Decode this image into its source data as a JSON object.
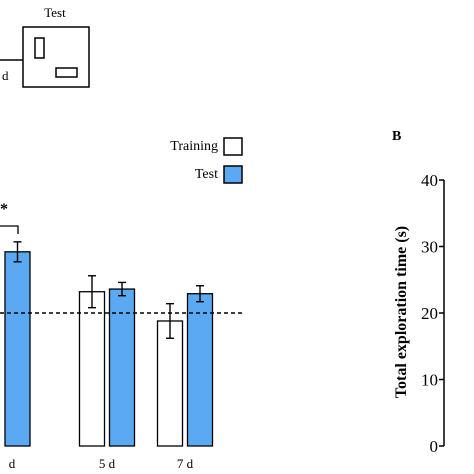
{
  "schematic": {
    "test_label": "Test",
    "cut_label": "d"
  },
  "panel_b_label": "B",
  "colors": {
    "training_fill": "#ffffff",
    "test_fill": "#5aa9f2",
    "stroke": "#000000"
  },
  "chart_data": [
    {
      "type": "bar",
      "categories": [
        "d",
        "5 d",
        "7 d"
      ],
      "series": [
        {
          "name": "Training",
          "values": [
            null,
            23.2,
            18.8
          ],
          "errors": [
            null,
            2.4,
            2.6
          ],
          "color": "#ffffff"
        },
        {
          "name": "Test",
          "values": [
            29.2,
            23.6,
            22.9
          ],
          "errors": [
            1.5,
            1.0,
            1.2
          ],
          "color": "#5aa9f2"
        }
      ],
      "reference_line": {
        "y": 20,
        "style": "dashed"
      },
      "significance": {
        "category": "d",
        "label": "*"
      },
      "ylim": [
        0,
        40
      ],
      "legend": {
        "position": "top-right",
        "entries": [
          "Training",
          "Test"
        ]
      },
      "xlabel": "",
      "ylabel": "",
      "title": ""
    },
    {
      "type": "bar",
      "ylabel": "Total exploration time (s)",
      "ylim": [
        0,
        40
      ],
      "yticks": [
        0,
        10,
        20,
        30,
        40
      ],
      "panel": "B"
    }
  ]
}
